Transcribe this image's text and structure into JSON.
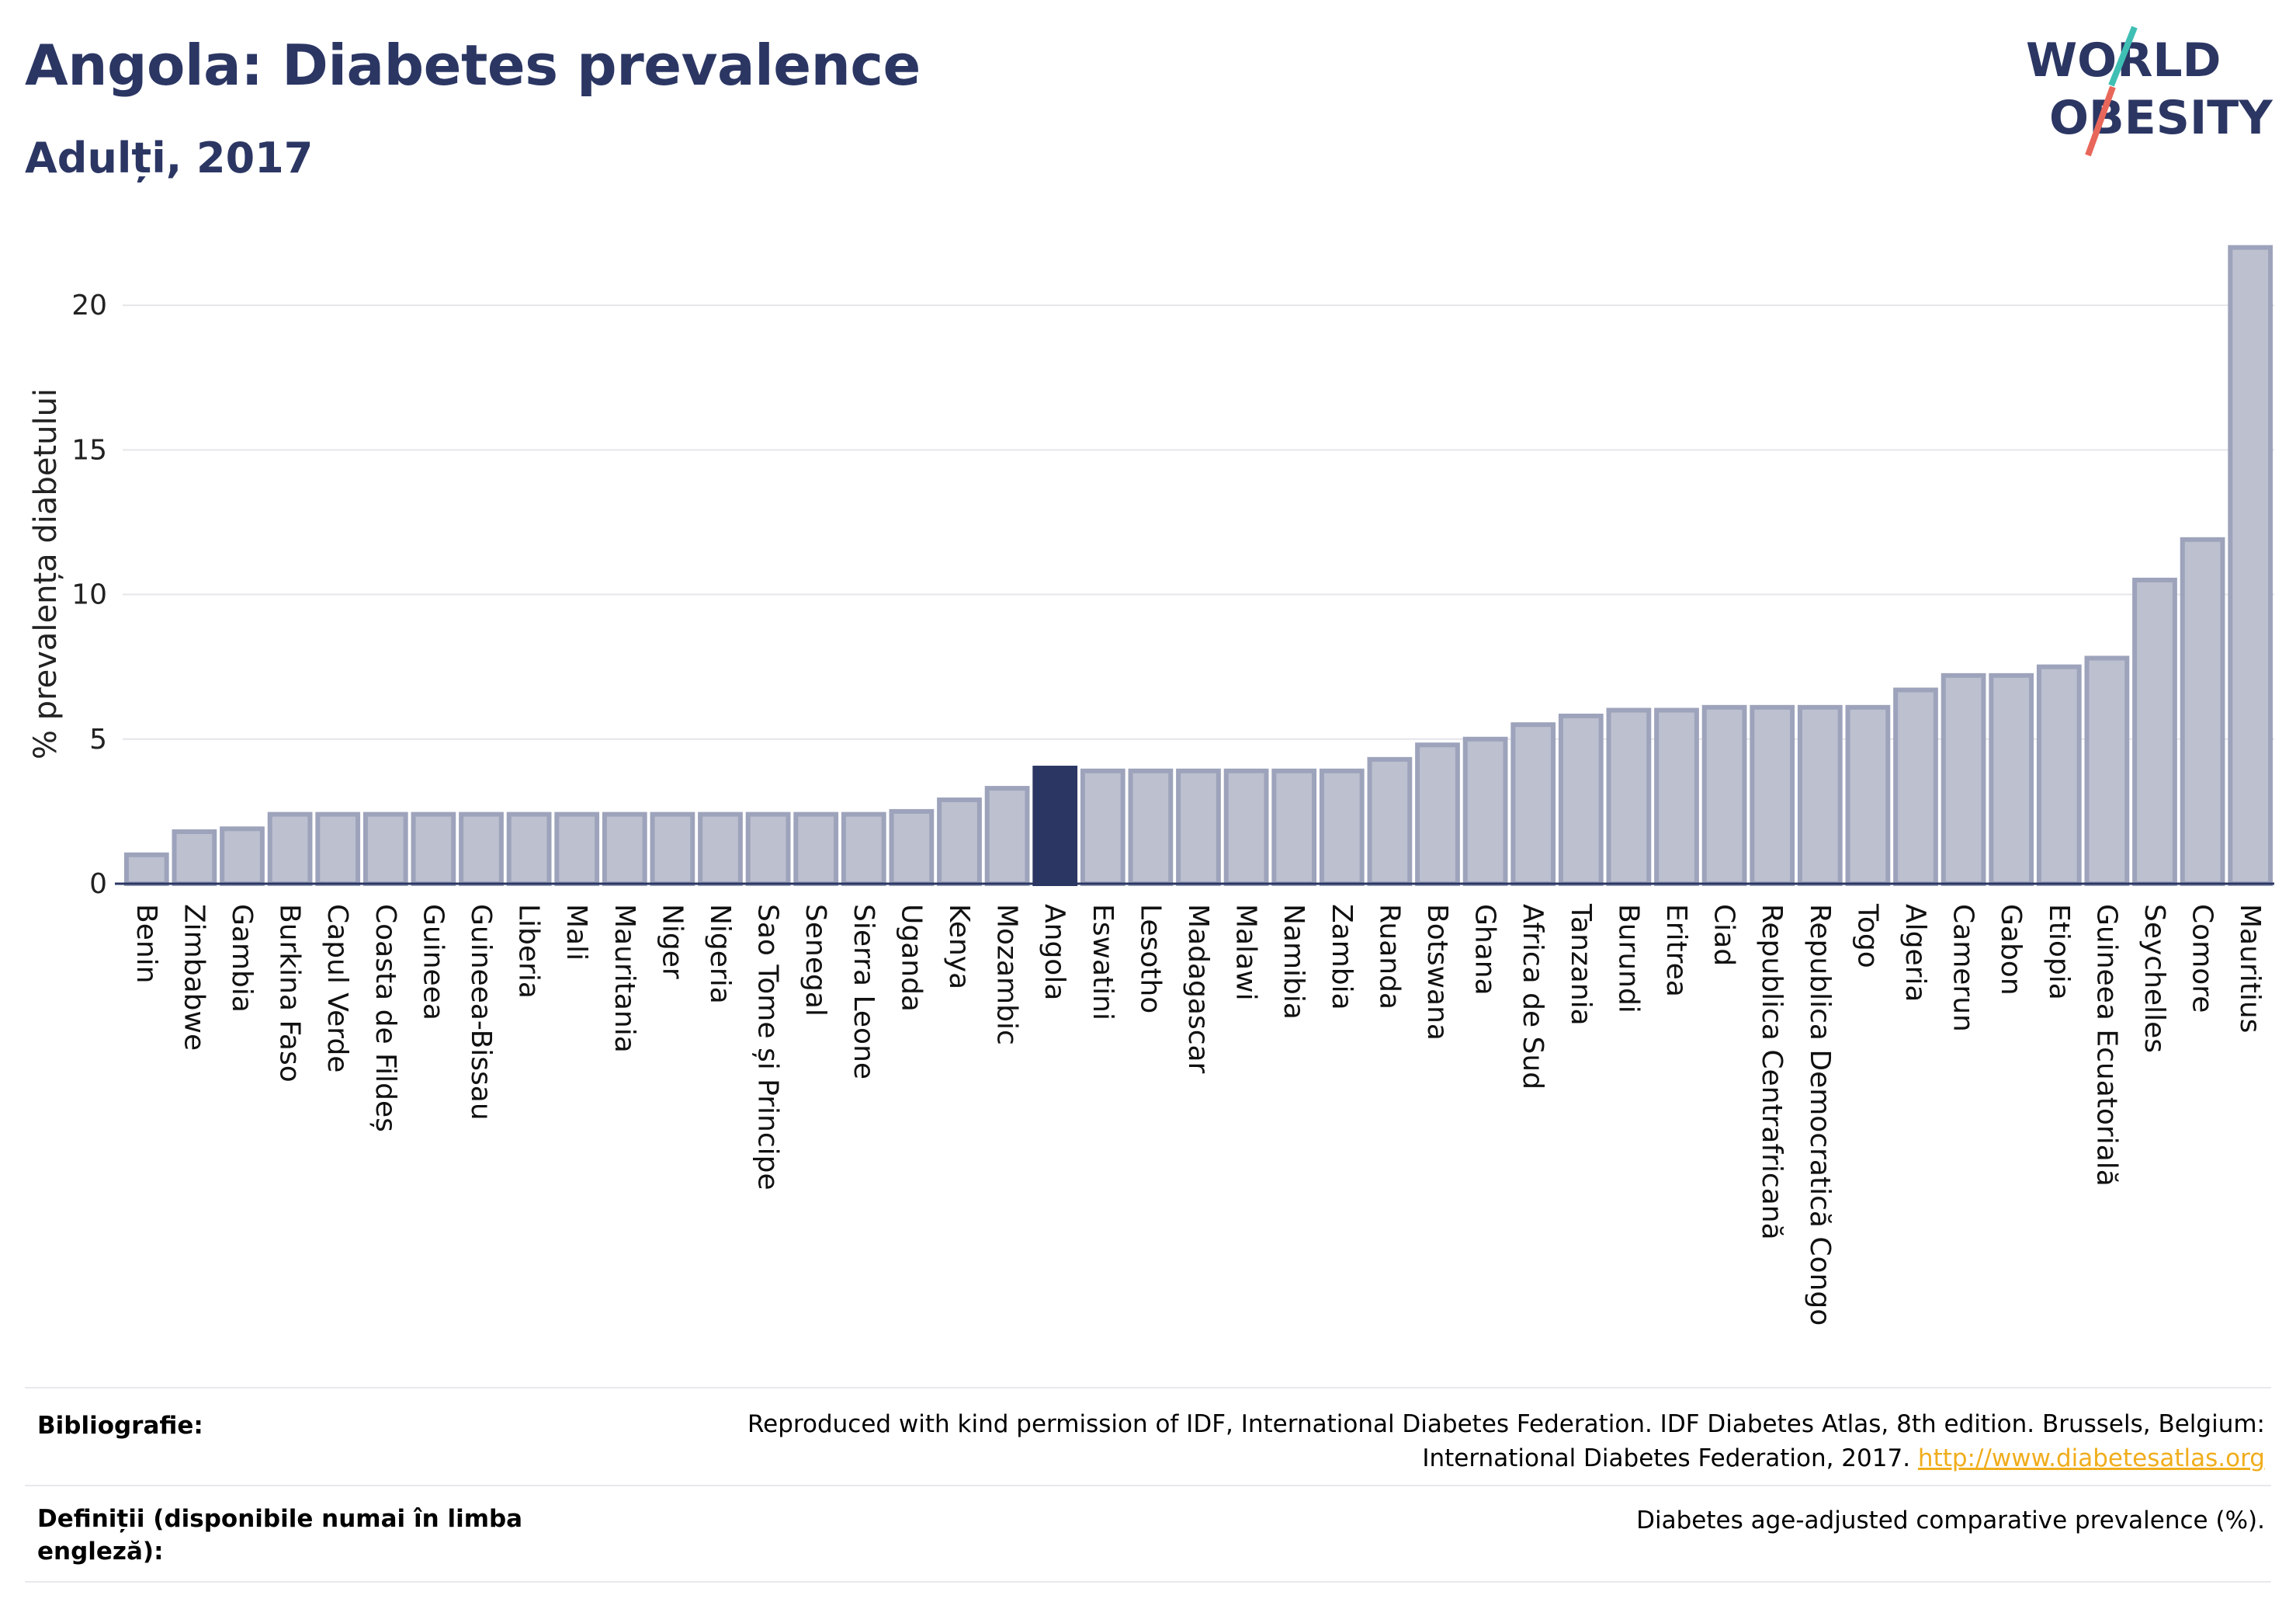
{
  "header": {
    "title": "Angola: Diabetes prevalence",
    "subtitle": "Adulți, 2017"
  },
  "logo": {
    "line1": "WORLD",
    "line2": "OBESITY",
    "text_color": "#2b3663",
    "slash_colors": [
      "#3fbfb4",
      "#e8675a"
    ]
  },
  "chart_data": {
    "type": "bar",
    "ylabel": "% prevalența diabetului",
    "ylim": [
      0,
      22.5
    ],
    "yticks": [
      0,
      5,
      10,
      15,
      20
    ],
    "grid": true,
    "highlight": "Angola",
    "colors": {
      "bar": "#bcc0cf",
      "bar_edge": "#9da3bb",
      "highlight": "#2b3663",
      "axis": "#2b3663",
      "grid": "#e6e6ea"
    },
    "categories": [
      "Benin",
      "Zimbabwe",
      "Gambia",
      "Burkina Faso",
      "Capul Verde",
      "Coasta de Fildeș",
      "Guineea",
      "Guineea-Bissau",
      "Liberia",
      "Mali",
      "Mauritania",
      "Niger",
      "Nigeria",
      "Sao Tome și Principe",
      "Senegal",
      "Sierra Leone",
      "Uganda",
      "Kenya",
      "Mozambic",
      "Angola",
      "Eswatini",
      "Lesotho",
      "Madagascar",
      "Malawi",
      "Namibia",
      "Zambia",
      "Ruanda",
      "Botswana",
      "Ghana",
      "Africa de Sud",
      "Tanzania",
      "Burundi",
      "Eritrea",
      "Ciad",
      "Republica Centrafricană",
      "Republica Democratică Congo",
      "Togo",
      "Algeria",
      "Camerun",
      "Gabon",
      "Etiopia",
      "Guineea Ecuatorială",
      "Seychelles",
      "Comore",
      "Mauritius"
    ],
    "values": [
      1.0,
      1.8,
      1.9,
      2.4,
      2.4,
      2.4,
      2.4,
      2.4,
      2.4,
      2.4,
      2.4,
      2.4,
      2.4,
      2.4,
      2.4,
      2.4,
      2.5,
      2.9,
      3.3,
      4.0,
      3.9,
      3.9,
      3.9,
      3.9,
      3.9,
      3.9,
      4.3,
      4.8,
      5.0,
      5.5,
      5.8,
      6.0,
      6.0,
      6.1,
      6.1,
      6.1,
      6.1,
      6.7,
      7.2,
      7.2,
      7.5,
      7.8,
      10.5,
      11.9,
      22.0
    ]
  },
  "footer": {
    "bibliography_label": "Bibliografie:",
    "bibliography_text_1": "Reproduced with kind permission of IDF, International Diabetes Federation. IDF Diabetes Atlas, 8th edition. Brussels, Belgium:",
    "bibliography_text_2": "International Diabetes Federation, 2017.",
    "bibliography_link": "http://www.diabetesatlas.org",
    "definitions_label_1": "Definiții (disponibile numai în limba",
    "definitions_label_2": "engleză):",
    "definitions_text": "Diabetes age-adjusted comparative prevalence (%)."
  }
}
